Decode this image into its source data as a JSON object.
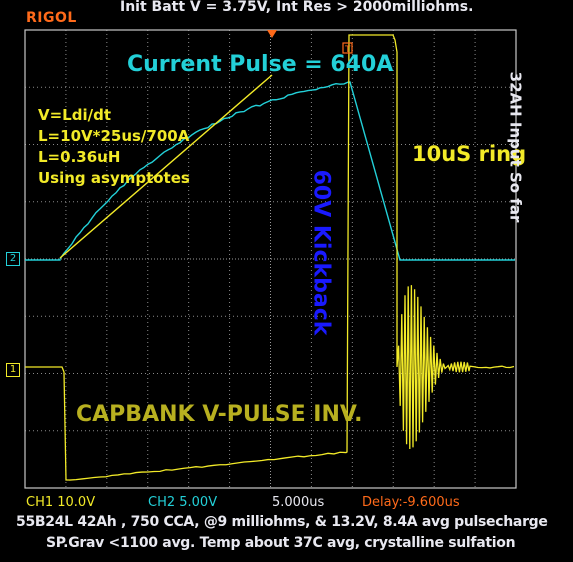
{
  "header": {
    "brand": "RIGOL",
    "title": "Init Batt V = 3.75V, Int Res > 2000milliohms."
  },
  "annotations": {
    "current_pulse": "Current Pulse = 640A",
    "formula_lines": [
      "V=Ldi/dt",
      "L=10V*25us/700A",
      "L=0.36uH",
      "Using asymptotes"
    ],
    "kickback": "60V Kickback",
    "ring": "10uS ring",
    "capbank": "CAPBANK V-PULSE INV.",
    "side_note": "32AH  Input So far"
  },
  "channels": {
    "ch1_marker": "1",
    "ch2_marker": "2",
    "ch1_scale": "CH1 10.0V",
    "ch2_scale": "CH2 5.00V",
    "timebase": "5.000us",
    "delay": "Delay:-9.600us",
    "trigger_marker": "T"
  },
  "caption": {
    "line1": "55B24L 42Ah , 750 CCA, @9 milliohms, & 13.2V, 8.4A avg pulsecharge",
    "line2": "SP.Grav <1100 avg. Temp about 37C avg, crystalline sulfation"
  },
  "colors": {
    "ch1": "#f2ea28",
    "ch2": "#23d0d8",
    "brand": "#ff6a1a",
    "annotation_blue": "#1a1aff",
    "text_white": "#e8e8f0"
  }
}
